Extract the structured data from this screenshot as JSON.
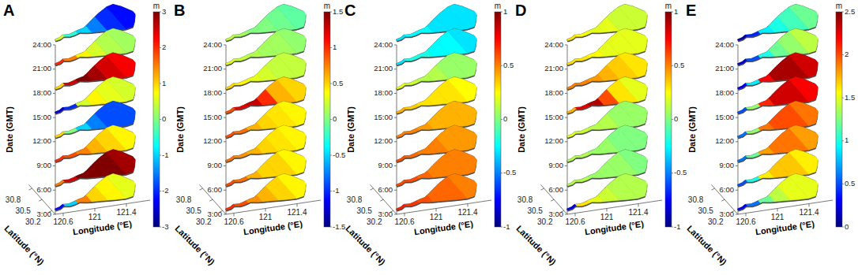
{
  "chart_data": [
    {
      "type": "heatmap",
      "title": "A",
      "xlabel": "Longitude (°E)",
      "ylabel": "Latitude (°N)",
      "zlabel": "Date (GMT)",
      "x": [
        120.6,
        120.78,
        120.95,
        121.12,
        121.33,
        121.57
      ],
      "xlim": [
        120.5,
        121.7
      ],
      "xticks": [
        120.6,
        121,
        121.4
      ],
      "ylim": [
        30.1,
        30.9
      ],
      "yticks": [
        30.2,
        30.5,
        30.8
      ],
      "categories": [
        "3:00",
        "6:00",
        "9:00",
        "12:00",
        "15:00",
        "18:00",
        "21:00",
        "24:00"
      ],
      "values": [
        [
          -2.2,
          -1.0,
          1.5,
          1.0,
          0.8,
          0.6
        ],
        [
          1.5,
          2.5,
          3.0,
          3.0,
          3.0,
          2.8
        ],
        [
          2.0,
          1.8,
          1.5,
          1.2,
          1.0,
          0.8
        ],
        [
          1.0,
          0.0,
          -1.0,
          -1.5,
          -1.8,
          -1.8
        ],
        [
          -2.5,
          -2.0,
          0.5,
          0.8,
          0.6,
          0.5
        ],
        [
          1.0,
          2.5,
          3.0,
          2.8,
          2.5,
          2.3
        ],
        [
          2.0,
          1.5,
          0.8,
          0.5,
          0.3,
          0.2
        ],
        [
          0.5,
          -0.5,
          -1.0,
          -1.5,
          -2.0,
          -2.2
        ]
      ],
      "colorbar": {
        "label": "m",
        "lim": [
          -3,
          3
        ],
        "ticks": [
          -3,
          -2,
          -1,
          0,
          1,
          2,
          3
        ]
      }
    },
    {
      "type": "heatmap",
      "title": "B",
      "xlabel": "Longitude (°E)",
      "ylabel": "Latitude (°N)",
      "zlabel": "Date (GMT)",
      "x": [
        120.6,
        120.78,
        120.95,
        121.12,
        121.33,
        121.57
      ],
      "xlim": [
        120.5,
        121.7
      ],
      "xticks": [
        120.6,
        121,
        121.4
      ],
      "ylim": [
        30.1,
        30.9
      ],
      "yticks": [
        30.2,
        30.5,
        30.8
      ],
      "categories": [
        "3:00",
        "6:00",
        "9:00",
        "12:00",
        "15:00",
        "18:00",
        "21:00",
        "24:00"
      ],
      "values": [
        [
          1.0,
          0.9,
          0.7,
          0.6,
          0.5,
          0.4
        ],
        [
          0.9,
          0.8,
          0.6,
          0.5,
          0.5,
          0.4
        ],
        [
          0.8,
          0.7,
          0.6,
          0.5,
          0.45,
          0.4
        ],
        [
          0.9,
          0.8,
          0.6,
          0.5,
          0.45,
          0.4
        ],
        [
          0.9,
          1.2,
          1.3,
          1.0,
          0.6,
          0.5
        ],
        [
          0.5,
          0.4,
          0.3,
          0.25,
          0.2,
          0.2
        ],
        [
          0.3,
          0.2,
          0.15,
          0.1,
          0.1,
          0.05
        ],
        [
          0.2,
          0.1,
          0.0,
          0.0,
          -0.05,
          -0.1
        ]
      ],
      "colorbar": {
        "label": "m",
        "lim": [
          -1.5,
          1.5
        ],
        "ticks": [
          -1.5,
          -1,
          -0.5,
          0,
          0.5,
          1,
          1.5
        ]
      }
    },
    {
      "type": "heatmap",
      "title": "C",
      "xlabel": "Longitude (°E)",
      "ylabel": "Latitude (°N)",
      "zlabel": "Date (GMT)",
      "x": [
        120.6,
        120.78,
        120.95,
        121.12,
        121.33,
        121.57
      ],
      "xlim": [
        120.5,
        121.7
      ],
      "xticks": [
        120.6,
        121,
        121.4
      ],
      "ylim": [
        30.1,
        30.9
      ],
      "yticks": [
        30.2,
        30.5,
        30.8
      ],
      "categories": [
        "3:00",
        "6:00",
        "9:00",
        "12:00",
        "15:00",
        "18:00",
        "21:00",
        "24:00"
      ],
      "values": [
        [
          0.7,
          0.65,
          0.6,
          0.55,
          0.55,
          0.5
        ],
        [
          0.6,
          0.6,
          0.55,
          0.5,
          0.5,
          0.5
        ],
        [
          0.6,
          0.55,
          0.5,
          0.5,
          0.45,
          0.45
        ],
        [
          0.5,
          0.5,
          0.45,
          0.4,
          0.4,
          0.4
        ],
        [
          0.4,
          0.35,
          0.3,
          0.3,
          0.3,
          0.25
        ],
        [
          0.2,
          0.15,
          0.1,
          0.1,
          0.05,
          0.05
        ],
        [
          -0.3,
          -0.2,
          -0.2,
          -0.25,
          -0.25,
          -0.3
        ],
        [
          -0.3,
          -0.25,
          -0.25,
          -0.3,
          -0.3,
          -0.3
        ]
      ],
      "colorbar": {
        "label": "m",
        "lim": [
          -1,
          1
        ],
        "ticks": [
          -1,
          -0.5,
          0,
          0.5,
          1
        ]
      }
    },
    {
      "type": "heatmap",
      "title": "D",
      "xlabel": "Longitude (°E)",
      "ylabel": "Latitude (°N)",
      "zlabel": "Date (GMT)",
      "x": [
        120.6,
        120.78,
        120.95,
        121.12,
        121.33,
        121.57
      ],
      "xlim": [
        120.5,
        121.7
      ],
      "xticks": [
        120.6,
        121,
        121.4
      ],
      "ylim": [
        30.1,
        30.9
      ],
      "yticks": [
        30.2,
        30.5,
        30.8
      ],
      "categories": [
        "3:00",
        "6:00",
        "9:00",
        "12:00",
        "15:00",
        "18:00",
        "21:00",
        "24:00"
      ],
      "values": [
        [
          -0.8,
          0.3,
          0.2,
          0.15,
          0.1,
          0.1
        ],
        [
          0.1,
          0.1,
          0.05,
          0.05,
          0.05,
          0.0
        ],
        [
          0.1,
          0.1,
          0.05,
          0.05,
          0.0,
          0.0
        ],
        [
          0.2,
          0.15,
          0.1,
          0.1,
          0.05,
          0.05
        ],
        [
          0.4,
          0.8,
          0.9,
          0.6,
          0.3,
          0.2
        ],
        [
          0.5,
          0.5,
          0.45,
          0.4,
          0.35,
          0.3
        ],
        [
          0.3,
          0.3,
          0.25,
          0.2,
          0.2,
          0.2
        ],
        [
          0.3,
          0.25,
          0.2,
          0.2,
          0.15,
          0.15
        ]
      ],
      "colorbar": {
        "label": "m",
        "lim": [
          -1,
          1
        ],
        "ticks": [
          -1,
          -0.5,
          0,
          0.5,
          1
        ]
      }
    },
    {
      "type": "heatmap",
      "title": "E",
      "xlabel": "Longitude (°E)",
      "ylabel": "Latitude (°N)",
      "zlabel": "Date (GMT)",
      "x": [
        120.6,
        120.78,
        120.95,
        121.12,
        121.33,
        121.57
      ],
      "xlim": [
        120.5,
        121.7
      ],
      "xticks": [
        120.6,
        121,
        121.4
      ],
      "ylim": [
        30.1,
        30.9
      ],
      "yticks": [
        30.2,
        30.5,
        30.8
      ],
      "categories": [
        "3:00",
        "6:00",
        "9:00",
        "12:00",
        "15:00",
        "18:00",
        "21:00",
        "24:00"
      ],
      "values": [
        [
          0.3,
          0.6,
          1.2,
          1.4,
          1.5,
          1.5
        ],
        [
          0.5,
          1.0,
          1.6,
          1.7,
          1.7,
          1.6
        ],
        [
          0.6,
          1.2,
          1.8,
          1.9,
          1.9,
          1.8
        ],
        [
          0.6,
          1.3,
          1.9,
          2.0,
          2.0,
          1.9
        ],
        [
          0.5,
          1.3,
          2.1,
          2.3,
          2.3,
          2.2
        ],
        [
          0.3,
          0.9,
          2.2,
          2.4,
          2.4,
          2.3
        ],
        [
          0.2,
          0.5,
          1.0,
          1.2,
          1.3,
          1.4
        ],
        [
          0.1,
          0.4,
          0.9,
          1.0,
          1.1,
          1.2
        ]
      ],
      "colorbar": {
        "label": "m",
        "lim": [
          0,
          2.5
        ],
        "ticks": [
          0,
          0.5,
          1,
          1.5,
          2,
          2.5
        ]
      }
    }
  ]
}
